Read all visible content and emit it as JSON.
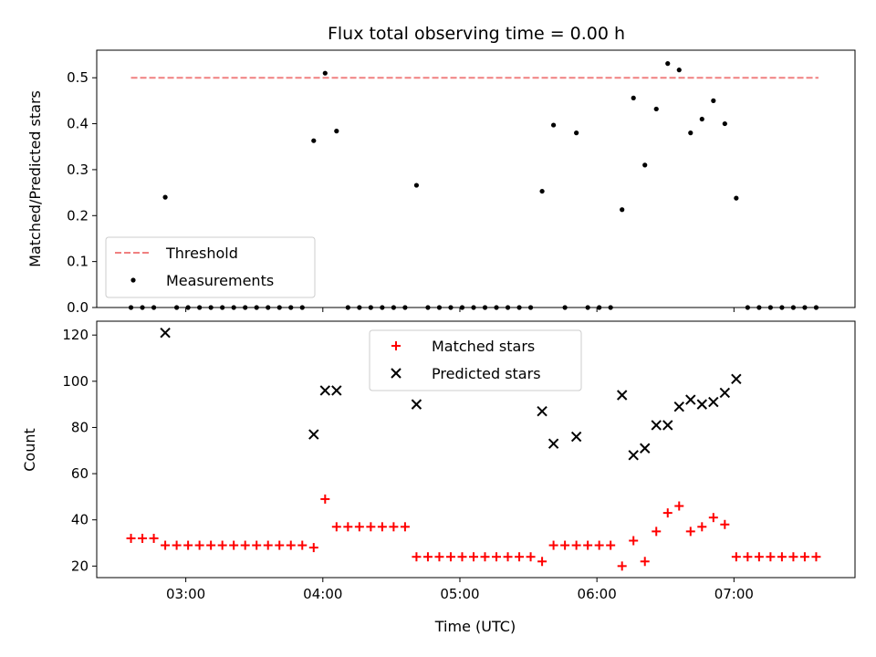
{
  "chart_data": [
    {
      "type": "scatter",
      "title": "Flux total observing time = 0.00 h",
      "xlabel": "",
      "ylabel": "Matched/Predicted stars",
      "xlim": [
        "02:21",
        "07:53"
      ],
      "ylim": [
        0,
        0.56
      ],
      "yticks": [
        0.0,
        0.1,
        0.2,
        0.3,
        0.4,
        0.5
      ],
      "ytick_labels": [
        "0.0",
        "0.1",
        "0.2",
        "0.3",
        "0.4",
        "0.5"
      ],
      "threshold": {
        "name": "Threshold",
        "value": 0.5,
        "x_range": [
          "02:36",
          "07:37"
        ],
        "color": "#f08080",
        "style": "dashed"
      },
      "series": [
        {
          "name": "Measurements",
          "marker": "dot",
          "color": "#000000",
          "points": [
            [
              "02:36",
              0
            ],
            [
              "02:41",
              0
            ],
            [
              "02:46",
              0
            ],
            [
              "02:51",
              0.24
            ],
            [
              "02:56",
              0
            ],
            [
              "03:01",
              0
            ],
            [
              "03:06",
              0
            ],
            [
              "03:11",
              0
            ],
            [
              "03:16",
              0
            ],
            [
              "03:21",
              0
            ],
            [
              "03:26",
              0
            ],
            [
              "03:31",
              0
            ],
            [
              "03:36",
              0
            ],
            [
              "03:41",
              0
            ],
            [
              "03:46",
              0
            ],
            [
              "03:51",
              0
            ],
            [
              "03:56",
              0.363
            ],
            [
              "04:01",
              0.51
            ],
            [
              "04:06",
              0.384
            ],
            [
              "04:11",
              0
            ],
            [
              "04:16",
              0
            ],
            [
              "04:21",
              0
            ],
            [
              "04:26",
              0
            ],
            [
              "04:31",
              0
            ],
            [
              "04:36",
              0
            ],
            [
              "04:41",
              0.266
            ],
            [
              "04:46",
              0
            ],
            [
              "04:51",
              0
            ],
            [
              "04:56",
              0
            ],
            [
              "05:01",
              0
            ],
            [
              "05:06",
              0
            ],
            [
              "05:11",
              0
            ],
            [
              "05:16",
              0
            ],
            [
              "05:21",
              0
            ],
            [
              "05:26",
              0
            ],
            [
              "05:31",
              0
            ],
            [
              "05:36",
              0.253
            ],
            [
              "05:41",
              0.397
            ],
            [
              "05:46",
              0
            ],
            [
              "05:51",
              0.38
            ],
            [
              "05:56",
              0
            ],
            [
              "06:01",
              0
            ],
            [
              "06:06",
              0
            ],
            [
              "06:11",
              0.213
            ],
            [
              "06:16",
              0.456
            ],
            [
              "06:21",
              0.31
            ],
            [
              "06:26",
              0.432
            ],
            [
              "06:31",
              0.531
            ],
            [
              "06:36",
              0.517
            ],
            [
              "06:41",
              0.38
            ],
            [
              "06:46",
              0.41
            ],
            [
              "06:51",
              0.45
            ],
            [
              "06:56",
              0.4
            ],
            [
              "07:01",
              0.238
            ],
            [
              "07:06",
              0
            ],
            [
              "07:11",
              0
            ],
            [
              "07:16",
              0
            ],
            [
              "07:21",
              0
            ],
            [
              "07:26",
              0
            ],
            [
              "07:31",
              0
            ],
            [
              "07:36",
              0
            ]
          ]
        }
      ],
      "legend": "lower-left",
      "grid": false
    },
    {
      "type": "scatter",
      "title": "",
      "xlabel": "Time (UTC)",
      "ylabel": "Count",
      "xlim": [
        "02:21",
        "07:53"
      ],
      "ylim": [
        15,
        126
      ],
      "yticks": [
        20,
        40,
        60,
        80,
        100,
        120
      ],
      "ytick_labels": [
        "20",
        "40",
        "60",
        "80",
        "100",
        "120"
      ],
      "xticks": [
        "03:00",
        "04:00",
        "05:00",
        "06:00",
        "07:00"
      ],
      "xtick_labels": [
        "03:00",
        "04:00",
        "05:00",
        "06:00",
        "07:00"
      ],
      "series": [
        {
          "name": "Matched stars",
          "marker": "plus",
          "color": "#ff0000",
          "points": [
            [
              "02:36",
              32
            ],
            [
              "02:41",
              32
            ],
            [
              "02:46",
              32
            ],
            [
              "02:51",
              29
            ],
            [
              "02:56",
              29
            ],
            [
              "03:01",
              29
            ],
            [
              "03:06",
              29
            ],
            [
              "03:11",
              29
            ],
            [
              "03:16",
              29
            ],
            [
              "03:21",
              29
            ],
            [
              "03:26",
              29
            ],
            [
              "03:31",
              29
            ],
            [
              "03:36",
              29
            ],
            [
              "03:41",
              29
            ],
            [
              "03:46",
              29
            ],
            [
              "03:51",
              29
            ],
            [
              "03:56",
              28
            ],
            [
              "04:01",
              49
            ],
            [
              "04:06",
              37
            ],
            [
              "04:11",
              37
            ],
            [
              "04:16",
              37
            ],
            [
              "04:21",
              37
            ],
            [
              "04:26",
              37
            ],
            [
              "04:31",
              37
            ],
            [
              "04:36",
              37
            ],
            [
              "04:41",
              24
            ],
            [
              "04:46",
              24
            ],
            [
              "04:51",
              24
            ],
            [
              "04:56",
              24
            ],
            [
              "05:01",
              24
            ],
            [
              "05:06",
              24
            ],
            [
              "05:11",
              24
            ],
            [
              "05:16",
              24
            ],
            [
              "05:21",
              24
            ],
            [
              "05:26",
              24
            ],
            [
              "05:31",
              24
            ],
            [
              "05:36",
              22
            ],
            [
              "05:41",
              29
            ],
            [
              "05:46",
              29
            ],
            [
              "05:51",
              29
            ],
            [
              "05:56",
              29
            ],
            [
              "06:01",
              29
            ],
            [
              "06:06",
              29
            ],
            [
              "06:11",
              20
            ],
            [
              "06:16",
              31
            ],
            [
              "06:21",
              22
            ],
            [
              "06:26",
              35
            ],
            [
              "06:31",
              43
            ],
            [
              "06:36",
              46
            ],
            [
              "06:41",
              35
            ],
            [
              "06:46",
              37
            ],
            [
              "06:51",
              41
            ],
            [
              "06:56",
              38
            ],
            [
              "07:01",
              24
            ],
            [
              "07:06",
              24
            ],
            [
              "07:11",
              24
            ],
            [
              "07:16",
              24
            ],
            [
              "07:21",
              24
            ],
            [
              "07:26",
              24
            ],
            [
              "07:31",
              24
            ],
            [
              "07:36",
              24
            ]
          ]
        },
        {
          "name": "Predicted stars",
          "marker": "x",
          "color": "#000000",
          "points": [
            [
              "02:51",
              121
            ],
            [
              "03:56",
              77
            ],
            [
              "04:01",
              96
            ],
            [
              "04:06",
              96
            ],
            [
              "04:41",
              90
            ],
            [
              "05:36",
              87
            ],
            [
              "05:41",
              73
            ],
            [
              "05:51",
              76
            ],
            [
              "06:11",
              94
            ],
            [
              "06:16",
              68
            ],
            [
              "06:21",
              71
            ],
            [
              "06:26",
              81
            ],
            [
              "06:31",
              81
            ],
            [
              "06:36",
              89
            ],
            [
              "06:41",
              92
            ],
            [
              "06:46",
              90
            ],
            [
              "06:51",
              91
            ],
            [
              "06:56",
              95
            ],
            [
              "07:01",
              101
            ]
          ]
        }
      ],
      "legend": "upper-center",
      "grid": false
    }
  ]
}
